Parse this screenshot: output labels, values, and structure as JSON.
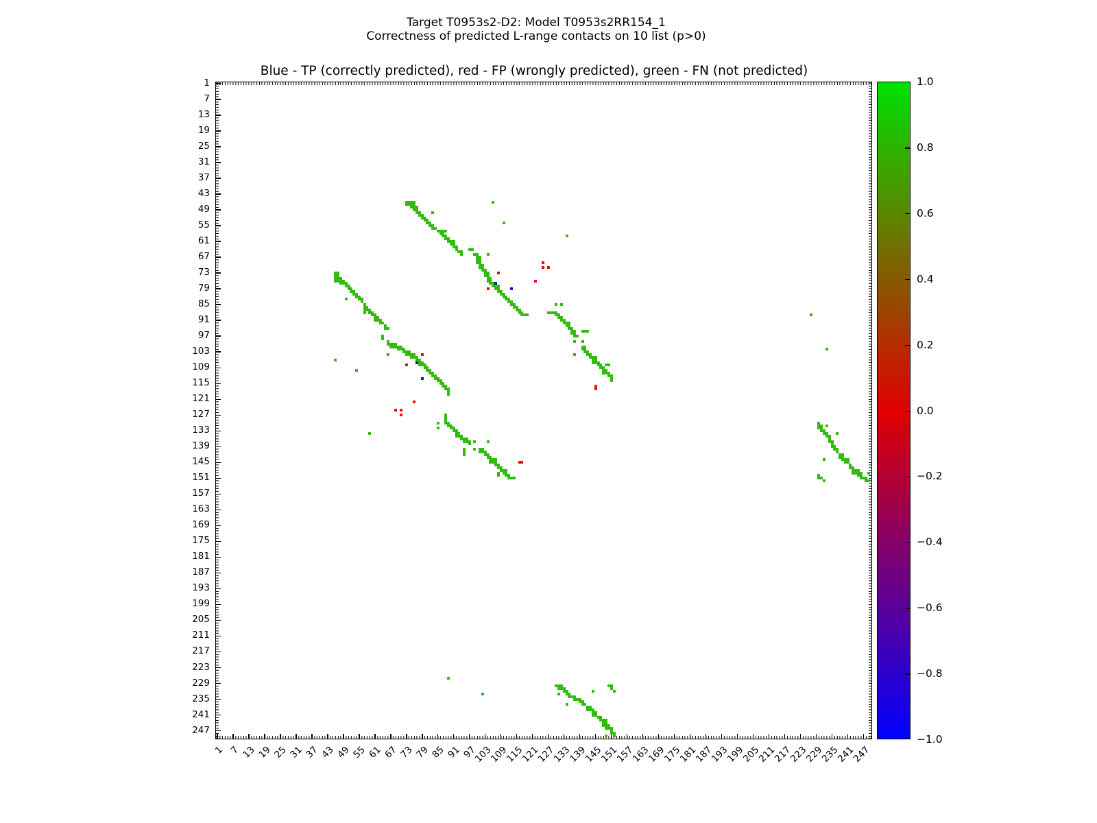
{
  "figure": {
    "suptitle_line1": "Target T0953s2-D2: Model T0953s2RR154_1",
    "suptitle_line2": "Correctness of predicted L-range contacts on 10 līst (p>0)",
    "axes_title": "Blue - TP (correctly predicted), red - FP (wrongly predicted), green - FN (not predicted)"
  },
  "chart_data": {
    "type": "heatmap",
    "title": "Blue - TP (correctly predicted), red - FP (wrongly predicted), green - FN (not predicted)",
    "xlabel": "",
    "ylabel": "",
    "grid": false,
    "symmetric_matrix": true,
    "axis": {
      "min": 0.5,
      "max": 250.5,
      "ticks": [
        1,
        7,
        13,
        19,
        25,
        31,
        37,
        43,
        49,
        55,
        61,
        67,
        73,
        79,
        85,
        91,
        97,
        103,
        109,
        115,
        121,
        127,
        133,
        139,
        145,
        151,
        157,
        163,
        169,
        175,
        181,
        187,
        193,
        199,
        205,
        211,
        217,
        223,
        229,
        235,
        241,
        247
      ]
    },
    "colorbar": {
      "labels": [
        "1.0",
        "0.8",
        "0.6",
        "0.4",
        "0.2",
        "0.0",
        "−0.2",
        "−0.4",
        "−0.6",
        "−0.8",
        "−1.0"
      ],
      "top_color": "#00e000",
      "mid_color": "#e00000",
      "bottom_color": "#0000ff"
    },
    "classes": {
      "tp": {
        "label": "TP (correctly predicted)",
        "color": "#1414cc"
      },
      "fp": {
        "label": "FP (wrongly predicted)",
        "color": "#ee0d0d"
      },
      "fn": {
        "label": "FN (not predicted)",
        "color": "#33bb11"
      }
    },
    "points": {
      "fn": [
        [
          73,
          46
        ],
        [
          74,
          46
        ],
        [
          75,
          46
        ],
        [
          76,
          46
        ],
        [
          73,
          47
        ],
        [
          74,
          47
        ],
        [
          75,
          47
        ],
        [
          76,
          47
        ],
        [
          75,
          48
        ],
        [
          76,
          48
        ],
        [
          77,
          48
        ],
        [
          76,
          49
        ],
        [
          77,
          49
        ],
        [
          77,
          50
        ],
        [
          78,
          50
        ],
        [
          83,
          50
        ],
        [
          78,
          51
        ],
        [
          79,
          51
        ],
        [
          79,
          52
        ],
        [
          80,
          52
        ],
        [
          80,
          53
        ],
        [
          81,
          53
        ],
        [
          81,
          54
        ],
        [
          82,
          54
        ],
        [
          82,
          55
        ],
        [
          83,
          55
        ],
        [
          83,
          56
        ],
        [
          84,
          56
        ],
        [
          85,
          57
        ],
        [
          86,
          57
        ],
        [
          87,
          57
        ],
        [
          88,
          57
        ],
        [
          86,
          58
        ],
        [
          87,
          58
        ],
        [
          87,
          59
        ],
        [
          88,
          59
        ],
        [
          88,
          60
        ],
        [
          89,
          60
        ],
        [
          89,
          61
        ],
        [
          90,
          61
        ],
        [
          91,
          61
        ],
        [
          90,
          62
        ],
        [
          91,
          62
        ],
        [
          91,
          63
        ],
        [
          92,
          63
        ],
        [
          92,
          64
        ],
        [
          97,
          64
        ],
        [
          98,
          64
        ],
        [
          93,
          65
        ],
        [
          94,
          65
        ],
        [
          94,
          66
        ],
        [
          99,
          66
        ],
        [
          100,
          66
        ],
        [
          104,
          66
        ],
        [
          100,
          67
        ],
        [
          101,
          67
        ],
        [
          100,
          68
        ],
        [
          101,
          68
        ],
        [
          100,
          69
        ],
        [
          101,
          69
        ],
        [
          101,
          70
        ],
        [
          102,
          70
        ],
        [
          101,
          71
        ],
        [
          102,
          71
        ],
        [
          102,
          72
        ],
        [
          103,
          72
        ],
        [
          103,
          73
        ],
        [
          104,
          73
        ],
        [
          103,
          74
        ],
        [
          104,
          74
        ],
        [
          104,
          75
        ],
        [
          105,
          75
        ],
        [
          104,
          76
        ],
        [
          105,
          76
        ],
        [
          105,
          77
        ],
        [
          106,
          77
        ],
        [
          106,
          78
        ],
        [
          107,
          78
        ],
        [
          108,
          78
        ],
        [
          107,
          79
        ],
        [
          108,
          79
        ],
        [
          108,
          80
        ],
        [
          109,
          80
        ],
        [
          109,
          81
        ],
        [
          110,
          81
        ],
        [
          110,
          82
        ],
        [
          111,
          82
        ],
        [
          111,
          83
        ],
        [
          112,
          83
        ],
        [
          112,
          84
        ],
        [
          113,
          84
        ],
        [
          113,
          85
        ],
        [
          114,
          85
        ],
        [
          114,
          86
        ],
        [
          115,
          86
        ],
        [
          115,
          87
        ],
        [
          116,
          87
        ],
        [
          116,
          88
        ],
        [
          117,
          88
        ],
        [
          117,
          89
        ],
        [
          118,
          89
        ],
        [
          119,
          89
        ],
        [
          130,
          85
        ],
        [
          132,
          85
        ],
        [
          127,
          88
        ],
        [
          128,
          88
        ],
        [
          129,
          88
        ],
        [
          130,
          88
        ],
        [
          130,
          89
        ],
        [
          131,
          89
        ],
        [
          131,
          90
        ],
        [
          132,
          90
        ],
        [
          132,
          91
        ],
        [
          133,
          91
        ],
        [
          133,
          92
        ],
        [
          134,
          92
        ],
        [
          135,
          92
        ],
        [
          134,
          93
        ],
        [
          135,
          93
        ],
        [
          135,
          94
        ],
        [
          136,
          94
        ],
        [
          136,
          95
        ],
        [
          137,
          95
        ],
        [
          140,
          95
        ],
        [
          141,
          95
        ],
        [
          142,
          95
        ],
        [
          136,
          96
        ],
        [
          137,
          96
        ],
        [
          137,
          97
        ],
        [
          138,
          97
        ],
        [
          137,
          99
        ],
        [
          140,
          99
        ],
        [
          140,
          101
        ],
        [
          141,
          101
        ],
        [
          140,
          102
        ],
        [
          141,
          102
        ],
        [
          141,
          103
        ],
        [
          142,
          103
        ],
        [
          137,
          104
        ],
        [
          142,
          104
        ],
        [
          143,
          104
        ],
        [
          143,
          105
        ],
        [
          144,
          105
        ],
        [
          145,
          105
        ],
        [
          144,
          106
        ],
        [
          145,
          106
        ],
        [
          144,
          107
        ],
        [
          145,
          107
        ],
        [
          146,
          107
        ],
        [
          146,
          108
        ],
        [
          147,
          108
        ],
        [
          149,
          108
        ],
        [
          150,
          108
        ],
        [
          147,
          109
        ],
        [
          148,
          109
        ],
        [
          148,
          110
        ],
        [
          149,
          110
        ],
        [
          148,
          111
        ],
        [
          149,
          111
        ],
        [
          150,
          111
        ],
        [
          150,
          112
        ],
        [
          151,
          112
        ],
        [
          151,
          113
        ],
        [
          151,
          114
        ],
        [
          230,
          130
        ],
        [
          230,
          131
        ],
        [
          231,
          131
        ],
        [
          233,
          131
        ],
        [
          230,
          132
        ],
        [
          231,
          132
        ],
        [
          231,
          133
        ],
        [
          232,
          133
        ],
        [
          232,
          134
        ],
        [
          233,
          134
        ],
        [
          237,
          134
        ],
        [
          233,
          135
        ],
        [
          234,
          135
        ],
        [
          234,
          136
        ],
        [
          234,
          137
        ],
        [
          235,
          137
        ],
        [
          235,
          138
        ],
        [
          235,
          139
        ],
        [
          236,
          139
        ],
        [
          236,
          140
        ],
        [
          237,
          140
        ],
        [
          237,
          141
        ],
        [
          238,
          142
        ],
        [
          239,
          142
        ],
        [
          238,
          143
        ],
        [
          239,
          143
        ],
        [
          232,
          144
        ],
        [
          239,
          144
        ],
        [
          240,
          144
        ],
        [
          241,
          144
        ],
        [
          240,
          145
        ],
        [
          241,
          145
        ],
        [
          242,
          146
        ],
        [
          242,
          147
        ],
        [
          243,
          147
        ],
        [
          243,
          148
        ],
        [
          244,
          148
        ],
        [
          245,
          148
        ],
        [
          243,
          149
        ],
        [
          244,
          149
        ],
        [
          245,
          149
        ],
        [
          246,
          149
        ],
        [
          249,
          149
        ],
        [
          245,
          150
        ],
        [
          246,
          150
        ],
        [
          246,
          151
        ],
        [
          247,
          151
        ],
        [
          248,
          151
        ],
        [
          248,
          152
        ],
        [
          249,
          152
        ],
        [
          230,
          150
        ],
        [
          230,
          151
        ],
        [
          231,
          151
        ],
        [
          232,
          152
        ],
        [
          106,
          46
        ],
        [
          110,
          54
        ],
        [
          134,
          59
        ],
        [
          227,
          89
        ],
        [
          233,
          102
        ]
      ],
      "fp": [
        [
          125,
          69
        ],
        [
          125,
          71
        ],
        [
          127,
          71
        ],
        [
          108,
          73
        ],
        [
          122,
          76
        ],
        [
          104,
          79
        ],
        [
          145,
          116
        ],
        [
          145,
          117
        ]
      ],
      "tp": [
        [
          107,
          77
        ],
        [
          113,
          79
        ]
      ]
    }
  }
}
